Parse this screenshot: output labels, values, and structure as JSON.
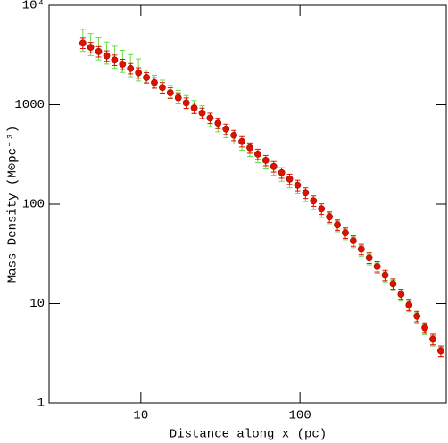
{
  "chart_data": {
    "type": "scatter",
    "xlabel": "Distance along x (pc)",
    "ylabel": "Mass Density (M⊙pc⁻³)",
    "xscale": "log",
    "yscale": "log",
    "xlim": [
      2.65,
      830
    ],
    "ylim": [
      1,
      10000
    ],
    "xticks": [
      10,
      100
    ],
    "yticks": [
      1,
      10,
      100,
      1000,
      {
        "value": 10000,
        "label": "10⁴"
      }
    ],
    "x": [
      4.32,
      4.84,
      5.43,
      6.1,
      6.84,
      7.67,
      8.61,
      9.66,
      10.84,
      12.16,
      13.65,
      15.31,
      17.18,
      19.28,
      21.63,
      24.27,
      27.23,
      30.55,
      34.28,
      38.46,
      43.15,
      48.42,
      54.33,
      60.95,
      68.39,
      76.74,
      86.1,
      96.61,
      108.4,
      121.6,
      136.5,
      153.1,
      171.8,
      192.8,
      216.3,
      242.7,
      272.3,
      305.5,
      342.8,
      384.6,
      431.5,
      484.2,
      543.3,
      609.5,
      683.9,
      767.4
    ],
    "series": [
      {
        "color": "#66dd44",
        "markers": false,
        "values": [
          4590,
          4160,
          3770,
          3420,
          3100,
          2820,
          2550,
          2310,
          1940,
          1720,
          1535,
          1360,
          1210,
          1076,
          957,
          851,
          684,
          607,
          530,
          458,
          397,
          343,
          297,
          257,
          222,
          193,
          166,
          144,
          121,
          100,
          83.4,
          72.3,
          60.0,
          49.9,
          41.5,
          34.1,
          27.9,
          22.9,
          18.7,
          15.3,
          12.0,
          9.37,
          7.23,
          5.53,
          4.25,
          3.25
        ],
        "errors": [
          1150,
          1040,
          940,
          855,
          775,
          705,
          640,
          580,
          290,
          258,
          230,
          204,
          182,
          161,
          144,
          128,
          82,
          73,
          64,
          55,
          48,
          41,
          36,
          31,
          27,
          23,
          20,
          17,
          15,
          12,
          10,
          8.7,
          7.2,
          6.0,
          5.0,
          4.1,
          3.4,
          2.7,
          2.2,
          1.8,
          1.4,
          1.1,
          0.87,
          0.66,
          0.51,
          0.39
        ]
      },
      {
        "color": "#dd1100",
        "markers": true,
        "values": [
          4170,
          3780,
          3430,
          3110,
          2820,
          2560,
          2320,
          2100,
          1880,
          1670,
          1490,
          1320,
          1175,
          1045,
          929,
          826,
          735,
          653,
          570,
          493,
          427,
          369,
          319,
          276,
          239,
          207,
          179,
          155,
          130,
          108,
          89.7,
          74.5,
          61.9,
          51.4,
          42.8,
          35.2,
          28.8,
          23.6,
          19.3,
          15.8,
          12.4,
          9.66,
          7.45,
          5.7,
          4.38,
          3.35
        ],
        "errors": [
          500,
          454,
          412,
          373,
          338,
          307,
          278,
          252,
          226,
          200,
          179,
          158,
          141,
          125,
          111,
          99,
          88,
          78,
          68,
          59,
          51,
          44,
          38,
          33,
          29,
          25,
          21,
          19,
          16,
          13,
          11,
          8.9,
          7.4,
          6.2,
          5.1,
          4.2,
          3.5,
          2.8,
          2.3,
          1.9,
          1.5,
          1.16,
          0.89,
          0.68,
          0.53,
          0.4
        ]
      }
    ]
  }
}
